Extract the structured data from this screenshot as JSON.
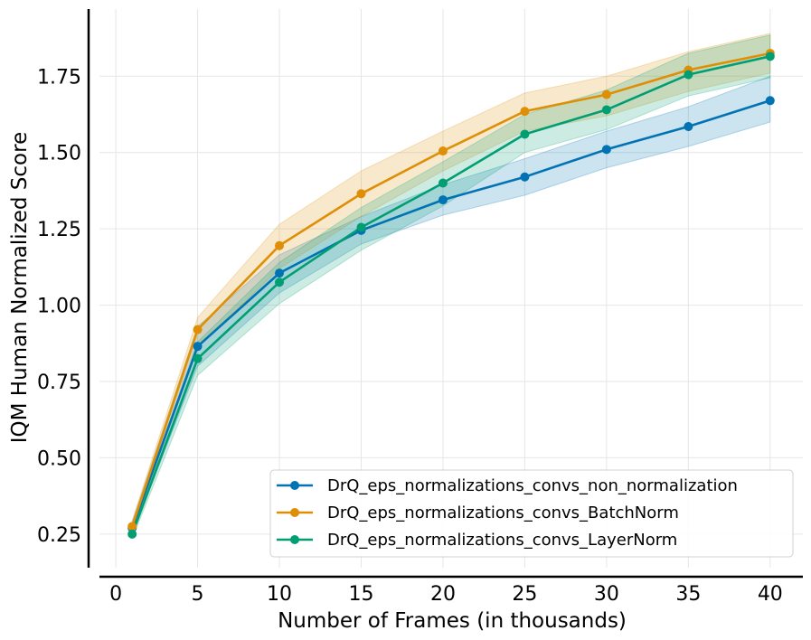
{
  "chart_data": {
    "type": "line",
    "title": "",
    "xlabel": "Number of Frames (in thousands)",
    "ylabel": "IQM Human Normalized Score",
    "xlim": [
      -1,
      42
    ],
    "ylim": [
      0.14,
      1.97
    ],
    "xticks": [
      0,
      5,
      10,
      15,
      20,
      25,
      30,
      35,
      40
    ],
    "xtick_labels": [
      "0",
      "5",
      "10",
      "15",
      "20",
      "25",
      "30",
      "35",
      "40"
    ],
    "yticks": [
      0.25,
      0.5,
      0.75,
      1.0,
      1.25,
      1.5,
      1.75
    ],
    "ytick_labels": [
      "0.25",
      "0.50",
      "0.75",
      "1.00",
      "1.25",
      "1.50",
      "1.75"
    ],
    "grid": true,
    "legend_position": "bottom-right",
    "x": [
      1,
      5,
      10,
      15,
      20,
      25,
      30,
      35,
      40
    ],
    "series": [
      {
        "name": "DrQ_eps_normalizations_convs_non_normalization",
        "color": "#0173b2",
        "values": [
          0.27,
          0.865,
          1.105,
          1.245,
          1.345,
          1.42,
          1.51,
          1.585,
          1.67
        ],
        "lower": [
          0.25,
          0.8,
          1.04,
          1.2,
          1.295,
          1.36,
          1.45,
          1.52,
          1.6
        ],
        "upper": [
          0.29,
          0.93,
          1.165,
          1.29,
          1.395,
          1.48,
          1.57,
          1.65,
          1.75
        ]
      },
      {
        "name": "DrQ_eps_normalizations_convs_BatchNorm",
        "color": "#de8f05",
        "values": [
          0.275,
          0.92,
          1.195,
          1.365,
          1.505,
          1.635,
          1.69,
          1.77,
          1.825
        ],
        "lower": [
          0.255,
          0.86,
          1.12,
          1.29,
          1.44,
          1.57,
          1.62,
          1.7,
          1.76
        ],
        "upper": [
          0.295,
          0.96,
          1.265,
          1.44,
          1.57,
          1.695,
          1.75,
          1.83,
          1.89
        ]
      },
      {
        "name": "DrQ_eps_normalizations_convs_LayerNorm",
        "color": "#029e73",
        "values": [
          0.25,
          0.825,
          1.075,
          1.255,
          1.4,
          1.56,
          1.64,
          1.755,
          1.815
        ],
        "lower": [
          0.235,
          0.77,
          1.005,
          1.18,
          1.325,
          1.5,
          1.575,
          1.685,
          1.745
        ],
        "upper": [
          0.265,
          0.88,
          1.14,
          1.32,
          1.47,
          1.625,
          1.705,
          1.825,
          1.885
        ]
      }
    ]
  }
}
